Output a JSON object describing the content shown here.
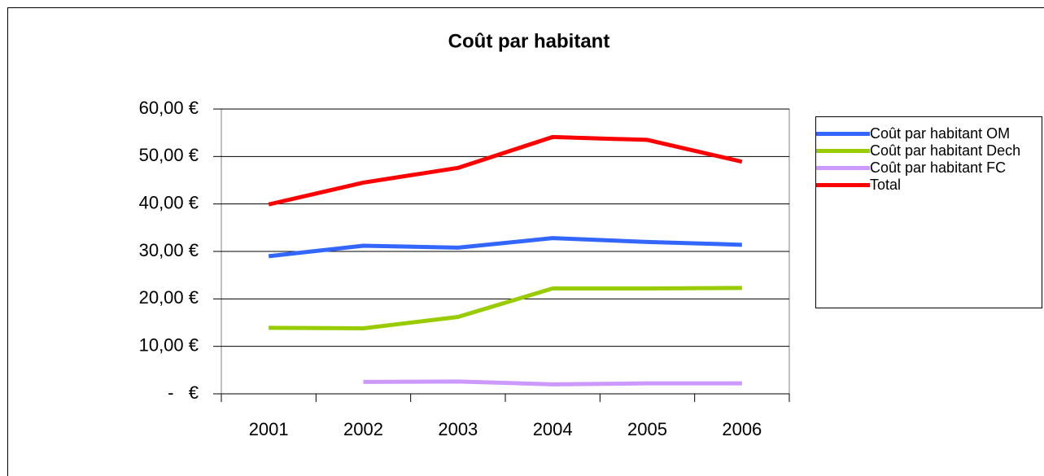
{
  "chart_data": {
    "type": "line",
    "title": "Coût par habitant",
    "categories": [
      "2001",
      "2002",
      "2003",
      "2004",
      "2005",
      "2006"
    ],
    "series": [
      {
        "name": "Coût par habitant OM",
        "color": "#3366ff",
        "values": [
          29.0,
          31.2,
          30.8,
          32.8,
          32.0,
          31.4
        ]
      },
      {
        "name": "Coût par habitant Dech",
        "color": "#99cc00",
        "values": [
          13.9,
          13.8,
          16.2,
          22.2,
          22.2,
          22.3
        ]
      },
      {
        "name": "Coût par habitant FC",
        "color": "#cc99ff",
        "values": [
          null,
          2.5,
          2.6,
          2.0,
          2.2,
          2.2
        ]
      },
      {
        "name": "Total",
        "color": "#ff0000",
        "values": [
          39.9,
          44.5,
          47.6,
          54.1,
          53.5,
          48.9
        ]
      }
    ],
    "ylim": [
      0,
      60
    ],
    "yticks": [
      {
        "value": 0,
        "label": "-   €"
      },
      {
        "value": 10,
        "label": "10,00 €"
      },
      {
        "value": 20,
        "label": "20,00 €"
      },
      {
        "value": 30,
        "label": "30,00 €"
      },
      {
        "value": 40,
        "label": "40,00 €"
      },
      {
        "value": 50,
        "label": "50,00 €"
      },
      {
        "value": 60,
        "label": "60,00 €"
      }
    ],
    "grid": true,
    "legend": "right"
  }
}
